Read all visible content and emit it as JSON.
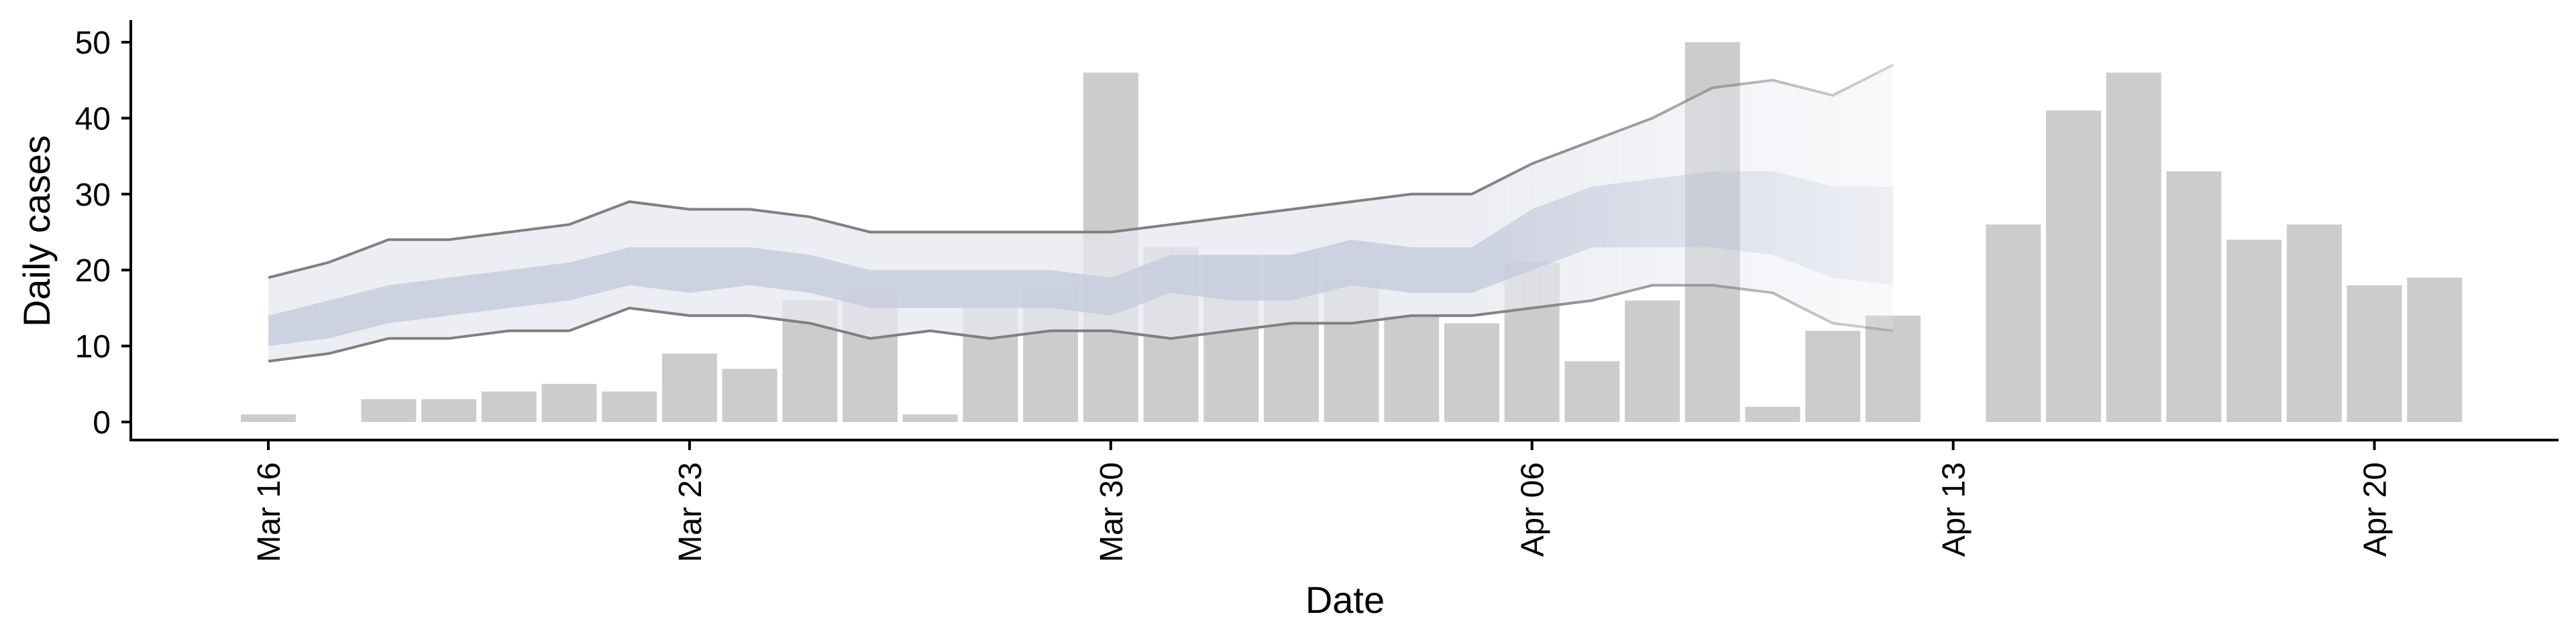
{
  "chart_data": {
    "type": "bar",
    "xlabel": "Date",
    "ylabel": "Daily cases",
    "ylim": [
      -2,
      52
    ],
    "yticks": [
      0,
      10,
      20,
      30,
      40,
      50
    ],
    "xlim": [
      "2020-03-12",
      "2020-04-22"
    ],
    "xticks": [
      {
        "date": "2020-03-16",
        "label": "Mar 16"
      },
      {
        "date": "2020-03-23",
        "label": "Mar 23"
      },
      {
        "date": "2020-03-30",
        "label": "Mar 30"
      },
      {
        "date": "2020-04-06",
        "label": "Apr 06"
      },
      {
        "date": "2020-04-13",
        "label": "Apr 13"
      },
      {
        "date": "2020-04-20",
        "label": "Apr 20"
      }
    ],
    "grid": false,
    "legend": "none",
    "bars": {
      "dates": [
        "2020-03-16",
        "2020-03-17",
        "2020-03-18",
        "2020-03-19",
        "2020-03-20",
        "2020-03-21",
        "2020-03-22",
        "2020-03-23",
        "2020-03-24",
        "2020-03-25",
        "2020-03-26",
        "2020-03-27",
        "2020-03-28",
        "2020-03-29",
        "2020-03-30",
        "2020-03-31",
        "2020-04-01",
        "2020-04-02",
        "2020-04-03",
        "2020-04-04",
        "2020-04-05",
        "2020-04-06",
        "2020-04-07",
        "2020-04-08",
        "2020-04-09",
        "2020-04-10",
        "2020-04-11",
        "2020-04-12",
        "2020-04-13",
        "2020-04-14",
        "2020-04-15",
        "2020-04-16",
        "2020-04-17",
        "2020-04-18",
        "2020-04-19",
        "2020-04-20",
        "2020-04-21"
      ],
      "values": [
        1,
        0,
        3,
        3,
        4,
        5,
        4,
        9,
        7,
        16,
        17,
        1,
        15,
        18,
        46,
        23,
        22,
        22,
        19,
        14,
        13,
        21,
        8,
        16,
        50,
        2,
        12,
        14,
        0,
        26,
        41,
        46,
        33,
        24,
        26,
        18,
        19
      ]
    },
    "estimate": {
      "dates": [
        "2020-03-16",
        "2020-03-17",
        "2020-03-18",
        "2020-03-19",
        "2020-03-20",
        "2020-03-21",
        "2020-03-22",
        "2020-03-23",
        "2020-03-24",
        "2020-03-25",
        "2020-03-26",
        "2020-03-27",
        "2020-03-28",
        "2020-03-29",
        "2020-03-30",
        "2020-03-31",
        "2020-04-01",
        "2020-04-02",
        "2020-04-03",
        "2020-04-04",
        "2020-04-05",
        "2020-04-06",
        "2020-04-07",
        "2020-04-08",
        "2020-04-09",
        "2020-04-10",
        "2020-04-11",
        "2020-04-12"
      ],
      "upper90": [
        19,
        21,
        24,
        24,
        25,
        26,
        29,
        28,
        28,
        27,
        25,
        25,
        25,
        25,
        25,
        26,
        27,
        28,
        29,
        30,
        30,
        34,
        37,
        40,
        44,
        45,
        43,
        47
      ],
      "lower90": [
        8,
        9,
        11,
        11,
        12,
        12,
        15,
        14,
        14,
        13,
        11,
        12,
        11,
        12,
        12,
        11,
        12,
        13,
        13,
        14,
        14,
        15,
        16,
        18,
        18,
        17,
        13,
        12
      ],
      "upper50": [
        14,
        16,
        18,
        19,
        20,
        21,
        23,
        23,
        23,
        22,
        20,
        20,
        20,
        20,
        19,
        22,
        22,
        22,
        24,
        23,
        23,
        28,
        31,
        32,
        33,
        33,
        31,
        31
      ],
      "lower50": [
        10,
        11,
        13,
        14,
        15,
        16,
        18,
        17,
        18,
        17,
        15,
        15,
        15,
        15,
        14,
        17,
        16,
        16,
        18,
        17,
        17,
        20,
        23,
        23,
        23,
        22,
        19,
        18
      ]
    },
    "colors": {
      "bar": "#cccccc",
      "band90": "#e6e8ef",
      "band50": "#c6cbdc",
      "bound_line": "#808080"
    }
  }
}
